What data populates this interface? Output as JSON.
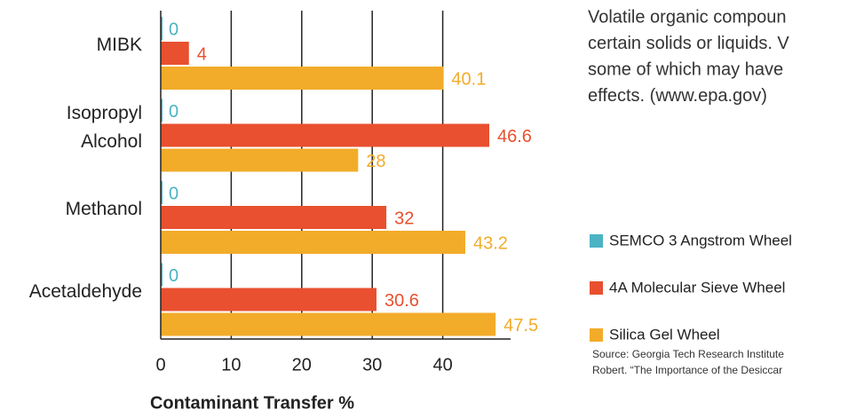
{
  "chart_data": {
    "type": "bar",
    "orientation": "horizontal",
    "x_label": "Contaminant Transfer %",
    "categories": [
      "MIBK",
      "Isopropyl\nAlcohol",
      "Methanol",
      "Acetaldehyde"
    ],
    "series": [
      {
        "name": "SEMCO 3 Angstrom Wheel",
        "color": "#4bb3c4",
        "values": [
          0,
          0,
          0,
          0
        ]
      },
      {
        "name": "4A Molecular Sieve Wheel",
        "color": "#e8502f",
        "values": [
          4,
          46.6,
          32,
          30.6
        ]
      },
      {
        "name": "Silica Gel Wheel",
        "color": "#f2ac2a",
        "values": [
          40.1,
          28,
          43.2,
          47.5
        ]
      }
    ],
    "xlim": [
      0,
      50
    ],
    "xticks": [
      0,
      10,
      20,
      30,
      40
    ],
    "grid": true,
    "legend": "right"
  },
  "text": {
    "lines": [
      "Volatile organic compoun",
      "certain solids or liquids. V",
      "some of which may have",
      "effects.  (www.epa.gov)"
    ],
    "source": [
      "Source: Georgia Tech Research Institute",
      "Robert. “The Importance of the Desiccar"
    ]
  }
}
